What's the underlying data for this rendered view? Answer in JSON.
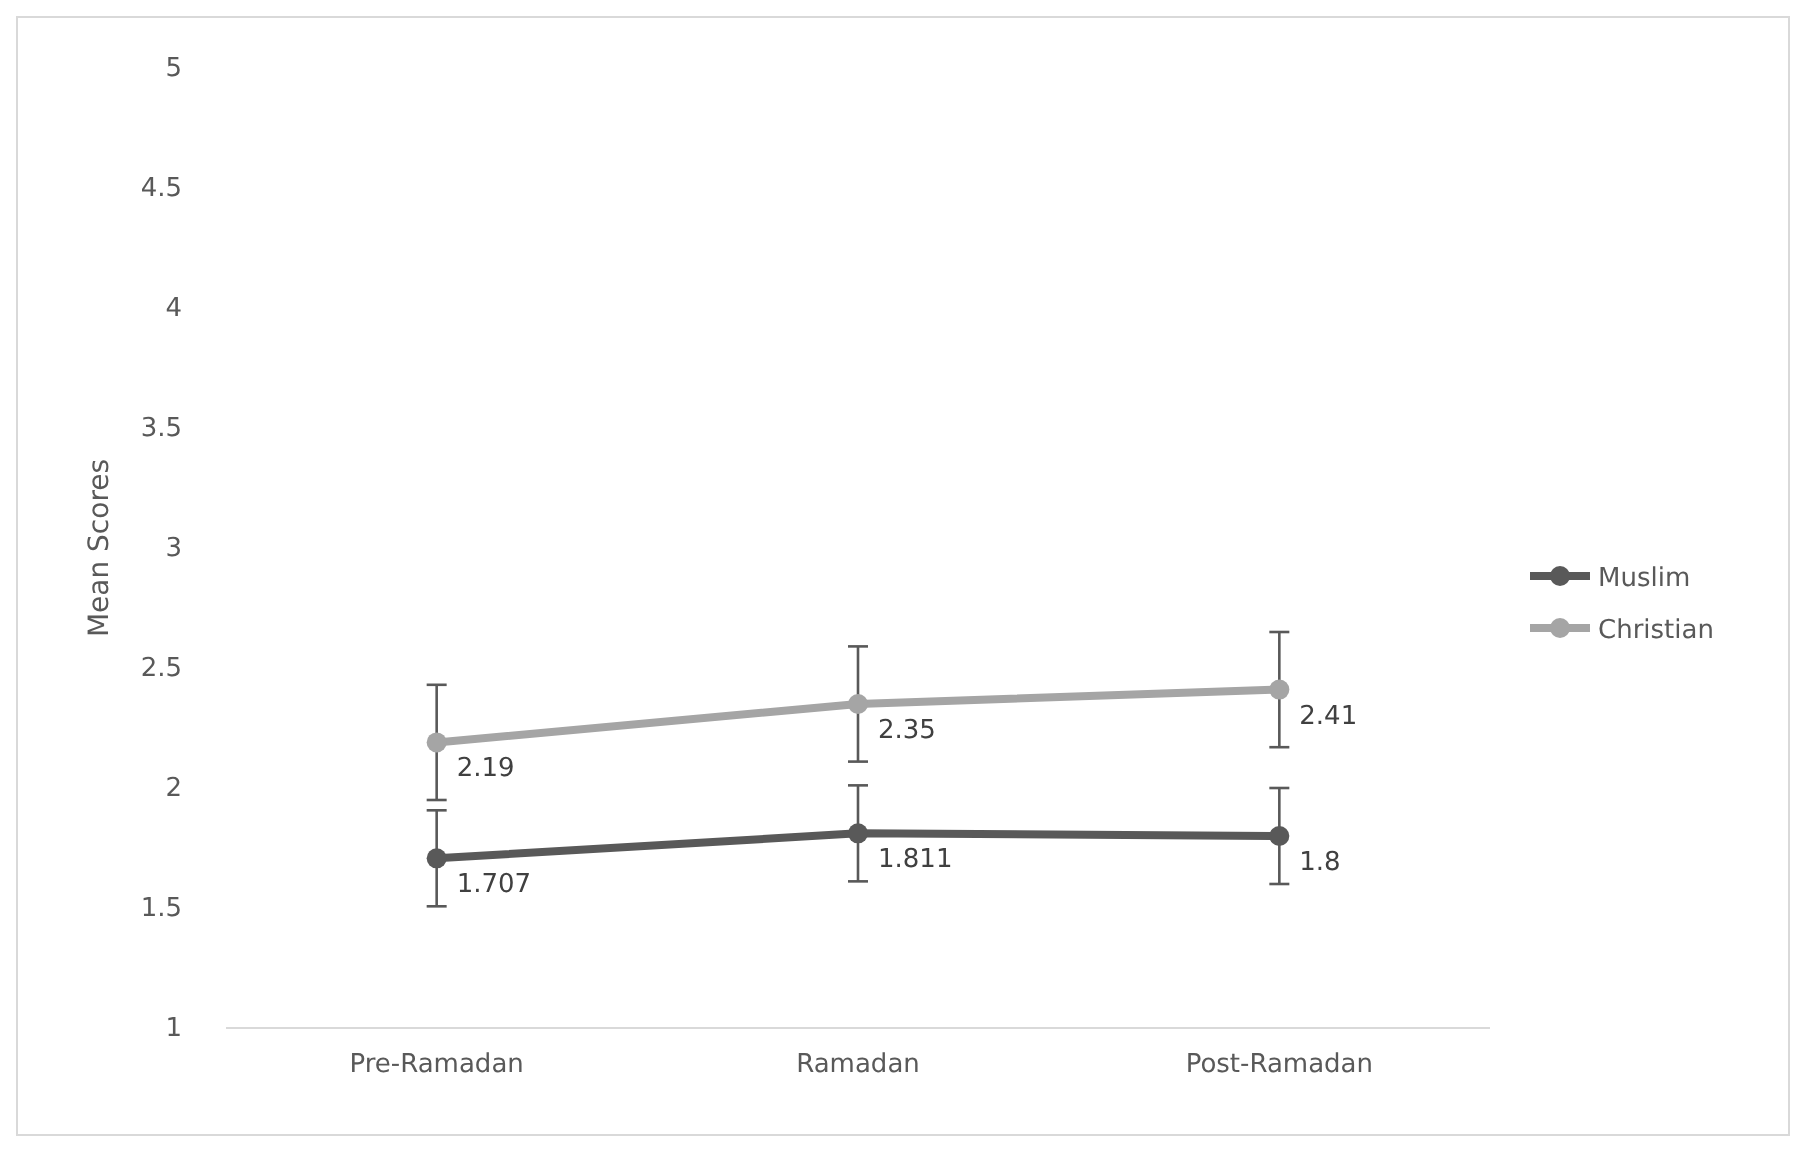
{
  "chart_data": {
    "type": "line",
    "ylabel": "Mean Scores",
    "categories": [
      "Pre-Ramadan",
      "Ramadan",
      "Post-Ramadan"
    ],
    "series": [
      {
        "name": "Muslim",
        "color": "#595959",
        "values": [
          1.707,
          1.811,
          1.8
        ],
        "errors": [
          0.2,
          0.2,
          0.2
        ]
      },
      {
        "name": "Christian",
        "color": "#a5a5a5",
        "values": [
          2.19,
          2.35,
          2.41
        ],
        "errors": [
          0.24,
          0.24,
          0.24
        ]
      }
    ],
    "ylim": [
      1,
      5
    ],
    "yticks": [
      1,
      1.5,
      2,
      2.5,
      3,
      3.5,
      4,
      4.5,
      5
    ],
    "grid": false,
    "legend": "right",
    "marker": "circle",
    "line_style": "solid",
    "data_labels": true
  }
}
